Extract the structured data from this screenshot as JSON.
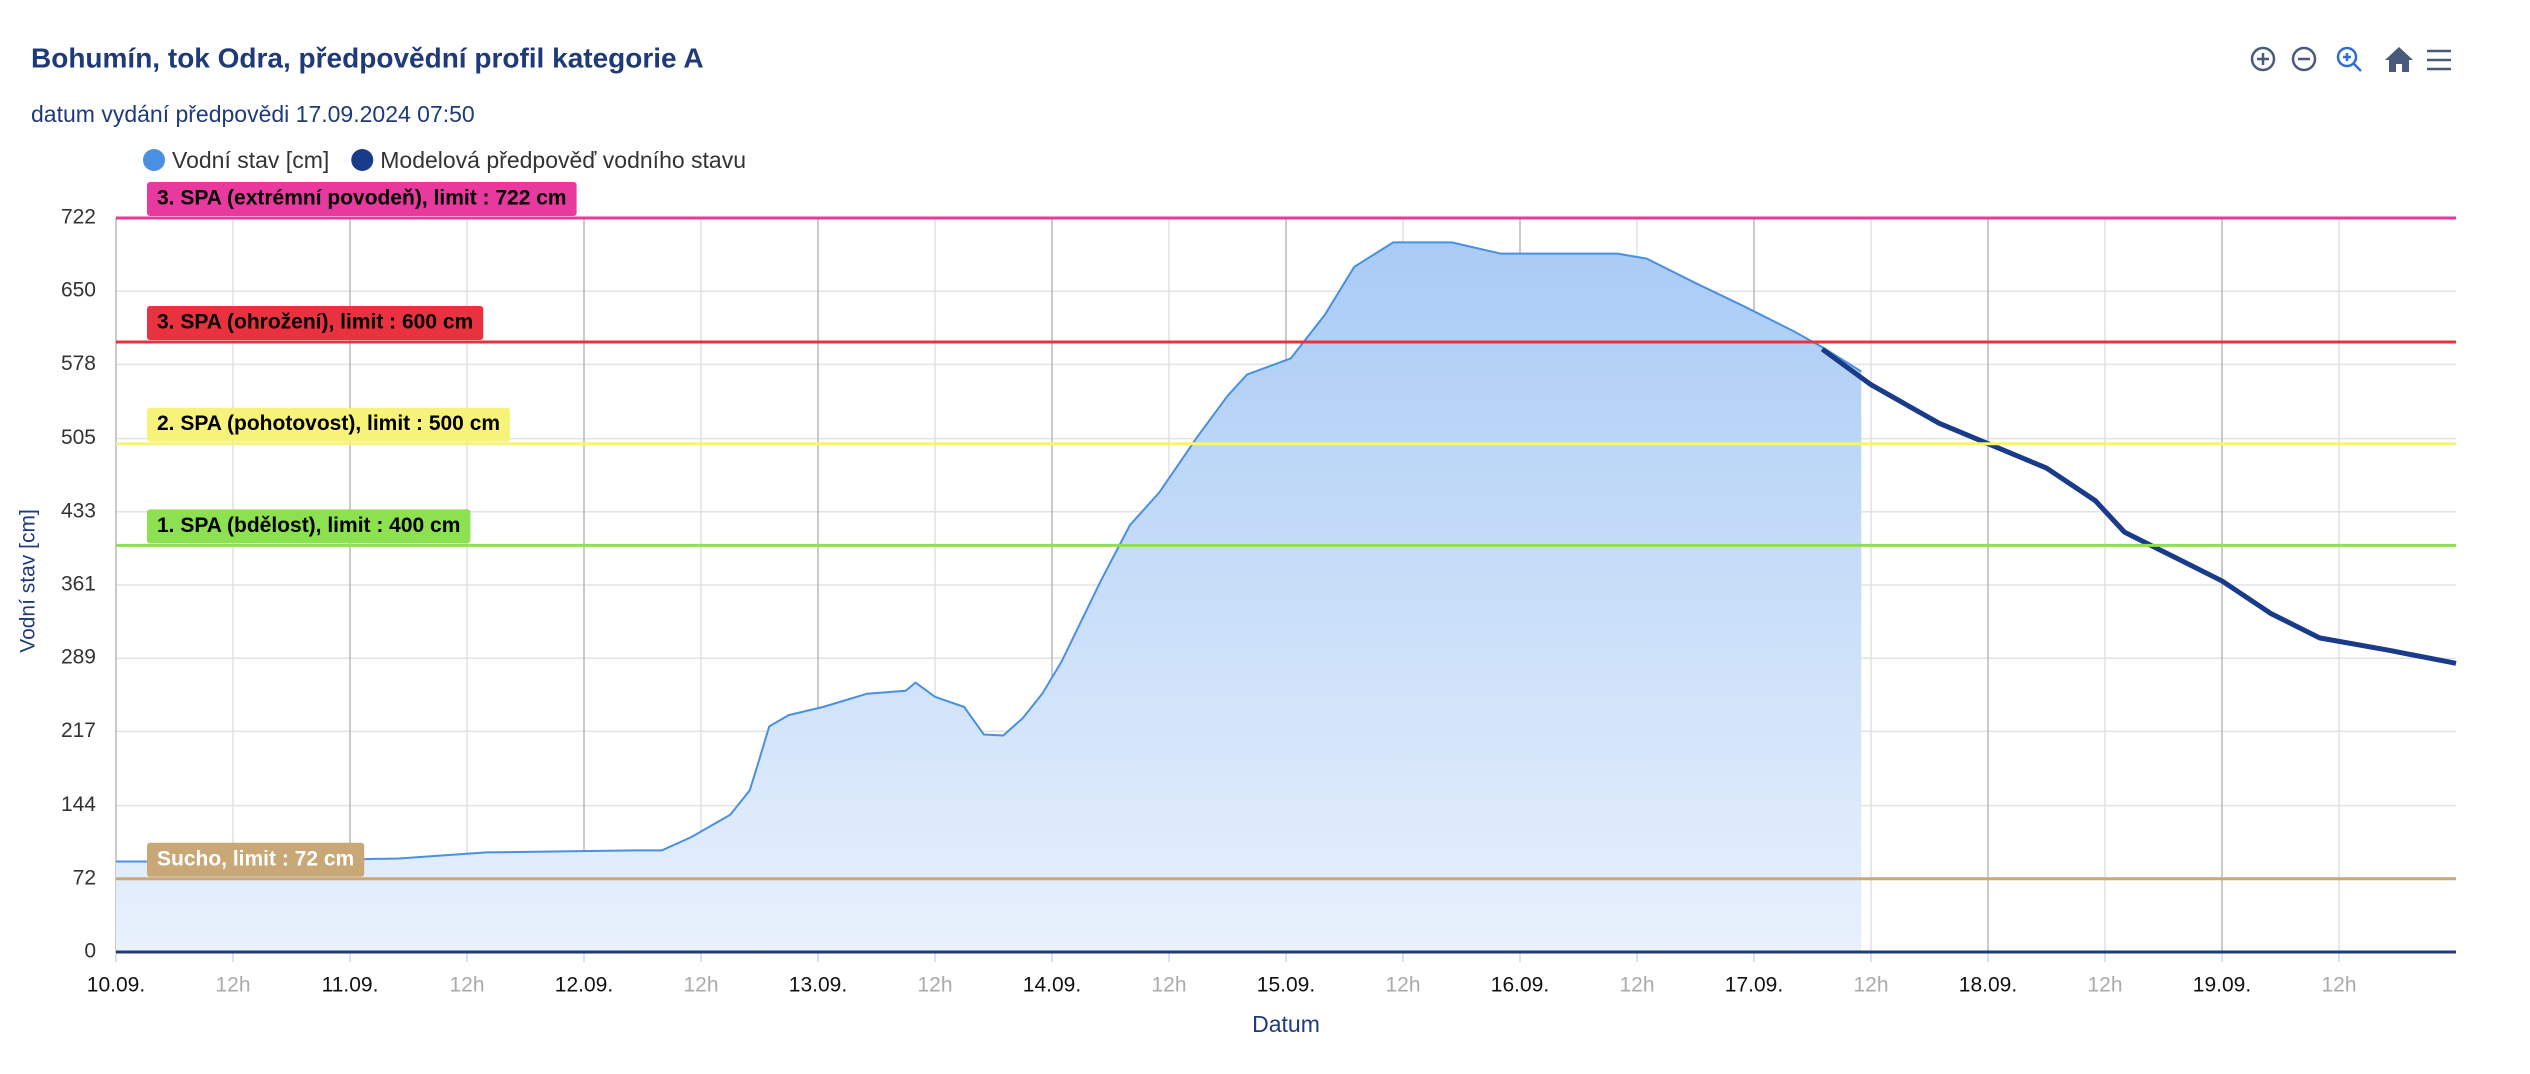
{
  "chart_data": {
    "type": "line",
    "title": "Bohumín, tok Odra, předpovědní profil kategorie A",
    "subtitle": "datum vydání předpovědi 17.09.2024 07:50",
    "x_label": "Datum",
    "y_label": "Vodní stav [cm]",
    "xlim": [
      0,
      240
    ],
    "xticks": [
      {
        "value": 0,
        "label": "10.09."
      },
      {
        "value": 12,
        "label": "12h"
      },
      {
        "value": 24,
        "label": "11.09."
      },
      {
        "value": 36,
        "label": "12h"
      },
      {
        "value": 48,
        "label": "12.09."
      },
      {
        "value": 60,
        "label": "12h"
      },
      {
        "value": 72,
        "label": "13.09."
      },
      {
        "value": 84,
        "label": "12h"
      },
      {
        "value": 96,
        "label": "14.09."
      },
      {
        "value": 108,
        "label": "12h"
      },
      {
        "value": 120,
        "label": "15.09."
      },
      {
        "value": 132,
        "label": "12h"
      },
      {
        "value": 144,
        "label": "16.09."
      },
      {
        "value": 156,
        "label": "12h"
      },
      {
        "value": 168,
        "label": "17.09."
      },
      {
        "value": 180,
        "label": "12h"
      },
      {
        "value": 192,
        "label": "18.09."
      },
      {
        "value": 204,
        "label": "12h"
      },
      {
        "value": 216,
        "label": "19.09."
      },
      {
        "value": 228,
        "label": "12h"
      }
    ],
    "ylim": [
      0,
      722
    ],
    "yticks": [
      0,
      72,
      144,
      217,
      289,
      361,
      433,
      505,
      578,
      650,
      722
    ],
    "grid": true,
    "plot_lines": [
      {
        "value": 722,
        "label": "3. SPA (extrémní povodeň), limit : 722 cm",
        "color": "#e8399e",
        "text_color": "#000000"
      },
      {
        "value": 600,
        "label": "3. SPA (ohrožení), limit : 600 cm",
        "color": "#e8323f",
        "text_color": "#000000"
      },
      {
        "value": 500,
        "label": "2. SPA (pohotovost), limit : 500 cm",
        "color": "#f7f27a",
        "text_color": "#000000"
      },
      {
        "value": 400,
        "label": "1. SPA (bdělost), limit : 400 cm",
        "color": "#8de04f",
        "text_color": "#000000"
      },
      {
        "value": 72,
        "label": "Sucho, limit : 72 cm",
        "color": "#c9a878",
        "text_color": "#ffffff"
      }
    ],
    "series": [
      {
        "name": "Vodní stav [cm]",
        "color": "#4a90e2",
        "area": true,
        "x": [
          0,
          13,
          29,
          38,
          54,
          56,
          59,
          63,
          65,
          66,
          67,
          69,
          72.5,
          77,
          81,
          82,
          84,
          87,
          89,
          91,
          93,
          95,
          97,
          101,
          104,
          107,
          111,
          114,
          116,
          120.5,
          124,
          127,
          131,
          137,
          142,
          147,
          154,
          157,
          162,
          167,
          172,
          175,
          179
        ],
        "values": [
          89,
          89,
          92,
          98,
          100,
          100,
          113,
          135,
          159,
          190,
          222,
          233,
          241,
          254,
          257,
          265,
          251,
          241,
          214,
          213,
          230,
          254,
          286,
          365,
          420,
          452,
          508,
          547,
          568,
          584,
          627,
          674,
          698,
          698,
          687,
          687,
          687,
          682,
          658,
          635,
          611,
          595,
          571
        ]
      },
      {
        "name": "Modelová předpověď vodního stavu",
        "color": "#1a3a8a",
        "area": false,
        "x": [
          175,
          180,
          187,
          192,
          198,
          203,
          206,
          211,
          216,
          221,
          226,
          233,
          240
        ],
        "values": [
          593,
          558,
          520,
          500,
          476,
          444,
          413,
          389,
          365,
          333,
          309,
          297,
          284
        ]
      }
    ]
  }
}
